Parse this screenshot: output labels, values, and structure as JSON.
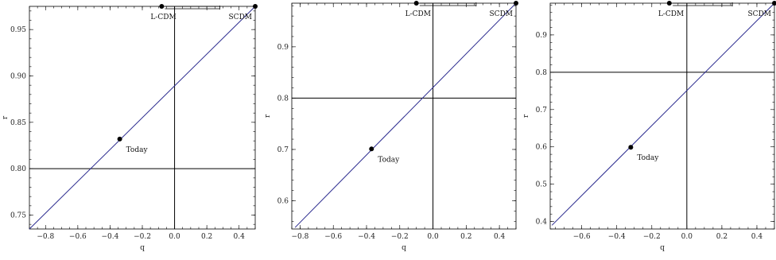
{
  "chart_data": [
    {
      "type": "scatter",
      "xlabel": "q",
      "ylabel": "r",
      "xlim": [
        -0.9,
        0.5
      ],
      "ylim": [
        0.735,
        0.975
      ],
      "xticks": [
        -0.8,
        -0.6,
        -0.4,
        -0.2,
        0.0,
        0.2,
        0.4
      ],
      "yticks": [
        0.75,
        0.8,
        0.85,
        0.9,
        0.95
      ],
      "xtick_labels": [
        "−0.8",
        "−0.6",
        "−0.4",
        "−0.2",
        "0.0",
        "0.2",
        "0.4"
      ],
      "ytick_labels": [
        "0.75",
        "0.80",
        "0.85",
        "0.90",
        "0.95"
      ],
      "hline": 0.8,
      "vline": 0.0,
      "trend_line": {
        "x": [
          -0.9,
          0.5
        ],
        "y": [
          0.735,
          0.975
        ]
      },
      "points": [
        {
          "label": "Today",
          "x": -0.34,
          "y": 0.832
        },
        {
          "label": "L-CDM",
          "x": -0.08,
          "y": 0.975
        },
        {
          "label": "SCDM",
          "x": 0.5,
          "y": 0.975
        }
      ],
      "error_bar": {
        "x": [
          -0.06,
          0.28
        ],
        "y": 0.975
      }
    },
    {
      "type": "scatter",
      "xlabel": "q",
      "ylabel": "r",
      "xlim": [
        -0.85,
        0.5
      ],
      "ylim": [
        0.545,
        0.985
      ],
      "xticks": [
        -0.8,
        -0.6,
        -0.4,
        -0.2,
        0.0,
        0.2,
        0.4
      ],
      "yticks": [
        0.6,
        0.7,
        0.8,
        0.9
      ],
      "xtick_labels": [
        "−0.8",
        "−0.6",
        "−0.4",
        "−0.2",
        "0.0",
        "0.2",
        "0.4"
      ],
      "ytick_labels": [
        "0.6",
        "0.7",
        "0.8",
        "0.9"
      ],
      "hline": 0.8,
      "vline": 0.0,
      "trend_line": {
        "x": [
          -0.83,
          0.5
        ],
        "y": [
          0.548,
          0.985
        ]
      },
      "points": [
        {
          "label": "Today",
          "x": -0.37,
          "y": 0.701
        },
        {
          "label": "L-CDM",
          "x": -0.1,
          "y": 0.985
        },
        {
          "label": "SCDM",
          "x": 0.5,
          "y": 0.985
        }
      ],
      "error_bar": {
        "x": [
          -0.08,
          0.26
        ],
        "y": 0.985
      }
    },
    {
      "type": "scatter",
      "xlabel": "q",
      "ylabel": "r",
      "xlim": [
        -0.78,
        0.5
      ],
      "ylim": [
        0.38,
        0.985
      ],
      "xticks": [
        -0.6,
        -0.4,
        -0.2,
        0.0,
        0.2,
        0.4
      ],
      "yticks": [
        0.4,
        0.5,
        0.6,
        0.7,
        0.8,
        0.9
      ],
      "xtick_labels": [
        "−0.6",
        "−0.4",
        "−0.2",
        "0.0",
        "0.2",
        "0.4"
      ],
      "ytick_labels": [
        "0.4",
        "0.5",
        "0.6",
        "0.7",
        "0.8",
        "0.9"
      ],
      "hline": 0.8,
      "vline": 0.0,
      "trend_line": {
        "x": [
          -0.77,
          0.5
        ],
        "y": [
          0.39,
          0.985
        ]
      },
      "points": [
        {
          "label": "Today",
          "x": -0.32,
          "y": 0.599
        },
        {
          "label": "L-CDM",
          "x": -0.1,
          "y": 0.985
        },
        {
          "label": "SCDM",
          "x": 0.5,
          "y": 0.985
        }
      ],
      "error_bar": {
        "x": [
          -0.08,
          0.26
        ],
        "y": 0.985
      }
    }
  ]
}
